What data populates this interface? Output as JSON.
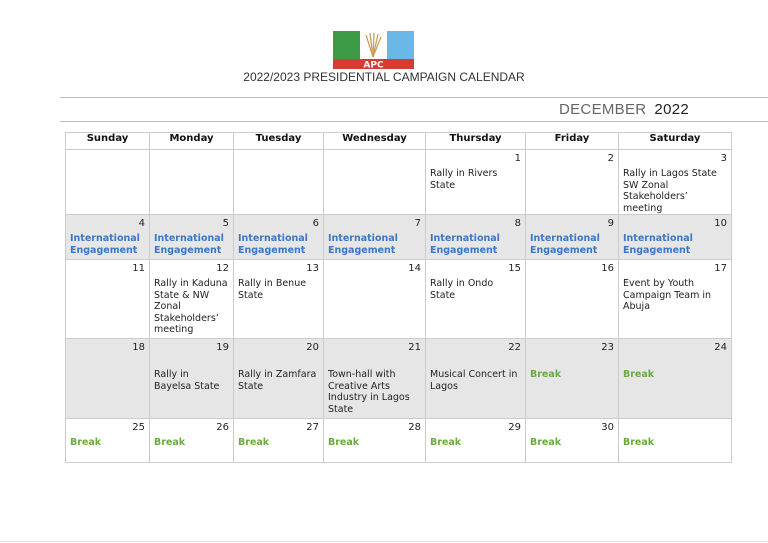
{
  "header": {
    "logo_text": "APC",
    "title": "2022/2023 PRESIDENTIAL CAMPAIGN CALENDAR",
    "month": "DECEMBER",
    "year": "2022"
  },
  "colors": {
    "engagement": "#3a78c8",
    "break": "#6aaa3f",
    "shade": "#e6e6e6"
  },
  "calendar": {
    "weekdays": [
      "Sunday",
      "Monday",
      "Tuesday",
      "Wednesday",
      "Thursday",
      "Friday",
      "Saturday"
    ],
    "weeks": [
      {
        "shaded": false,
        "days": [
          {
            "num": "",
            "event": "",
            "style": ""
          },
          {
            "num": "",
            "event": "",
            "style": ""
          },
          {
            "num": "",
            "event": "",
            "style": ""
          },
          {
            "num": "",
            "event": "",
            "style": ""
          },
          {
            "num": "1",
            "event": "Rally in Rivers State",
            "style": ""
          },
          {
            "num": "2",
            "event": "",
            "style": ""
          },
          {
            "num": "3",
            "event": "Rally in Lagos State SW Zonal Stakeholders’ meeting",
            "style": ""
          }
        ]
      },
      {
        "shaded": true,
        "days": [
          {
            "num": "4",
            "event": "International Engagement",
            "style": "blue"
          },
          {
            "num": "5",
            "event": "International Engagement",
            "style": "blue"
          },
          {
            "num": "6",
            "event": "International Engagement",
            "style": "blue"
          },
          {
            "num": "7",
            "event": "International Engagement",
            "style": "blue"
          },
          {
            "num": "8",
            "event": "International Engagement",
            "style": "blue"
          },
          {
            "num": "9",
            "event": "International Engagement",
            "style": "blue"
          },
          {
            "num": "10",
            "event": "International Engagement",
            "style": "blue"
          }
        ]
      },
      {
        "shaded": false,
        "days": [
          {
            "num": "11",
            "event": "",
            "style": ""
          },
          {
            "num": "12",
            "event": "Rally in Kaduna State & NW Zonal Stakeholders’ meeting",
            "style": ""
          },
          {
            "num": "13",
            "event": "Rally in Benue State",
            "style": ""
          },
          {
            "num": "14",
            "event": "",
            "style": ""
          },
          {
            "num": "15",
            "event": "Rally in Ondo State",
            "style": ""
          },
          {
            "num": "16",
            "event": "",
            "style": ""
          },
          {
            "num": "17",
            "event": "Event by Youth Campaign Team in Abuja",
            "style": ""
          }
        ]
      },
      {
        "shaded": true,
        "days": [
          {
            "num": "18",
            "event": "",
            "style": ""
          },
          {
            "num": "19",
            "event": "Rally in Bayelsa State",
            "style": ""
          },
          {
            "num": "20",
            "event": "Rally in Zamfara State",
            "style": ""
          },
          {
            "num": "21",
            "event": "Town-hall with Creative Arts Industry in Lagos State",
            "style": ""
          },
          {
            "num": "22",
            "event": "Musical Concert in Lagos",
            "style": ""
          },
          {
            "num": "23",
            "event": "Break",
            "style": "green"
          },
          {
            "num": "24",
            "event": "Break",
            "style": "green"
          }
        ]
      },
      {
        "shaded": false,
        "days": [
          {
            "num": "25",
            "event": "Break",
            "style": "green"
          },
          {
            "num": "26",
            "event": "Break",
            "style": "green"
          },
          {
            "num": "27",
            "event": "Break",
            "style": "green"
          },
          {
            "num": "28",
            "event": "Break",
            "style": "green"
          },
          {
            "num": "29",
            "event": "Break",
            "style": "green"
          },
          {
            "num": "30",
            "event": "Break",
            "style": "green"
          },
          {
            "num": "",
            "event": "Break",
            "style": "green"
          }
        ]
      }
    ]
  }
}
